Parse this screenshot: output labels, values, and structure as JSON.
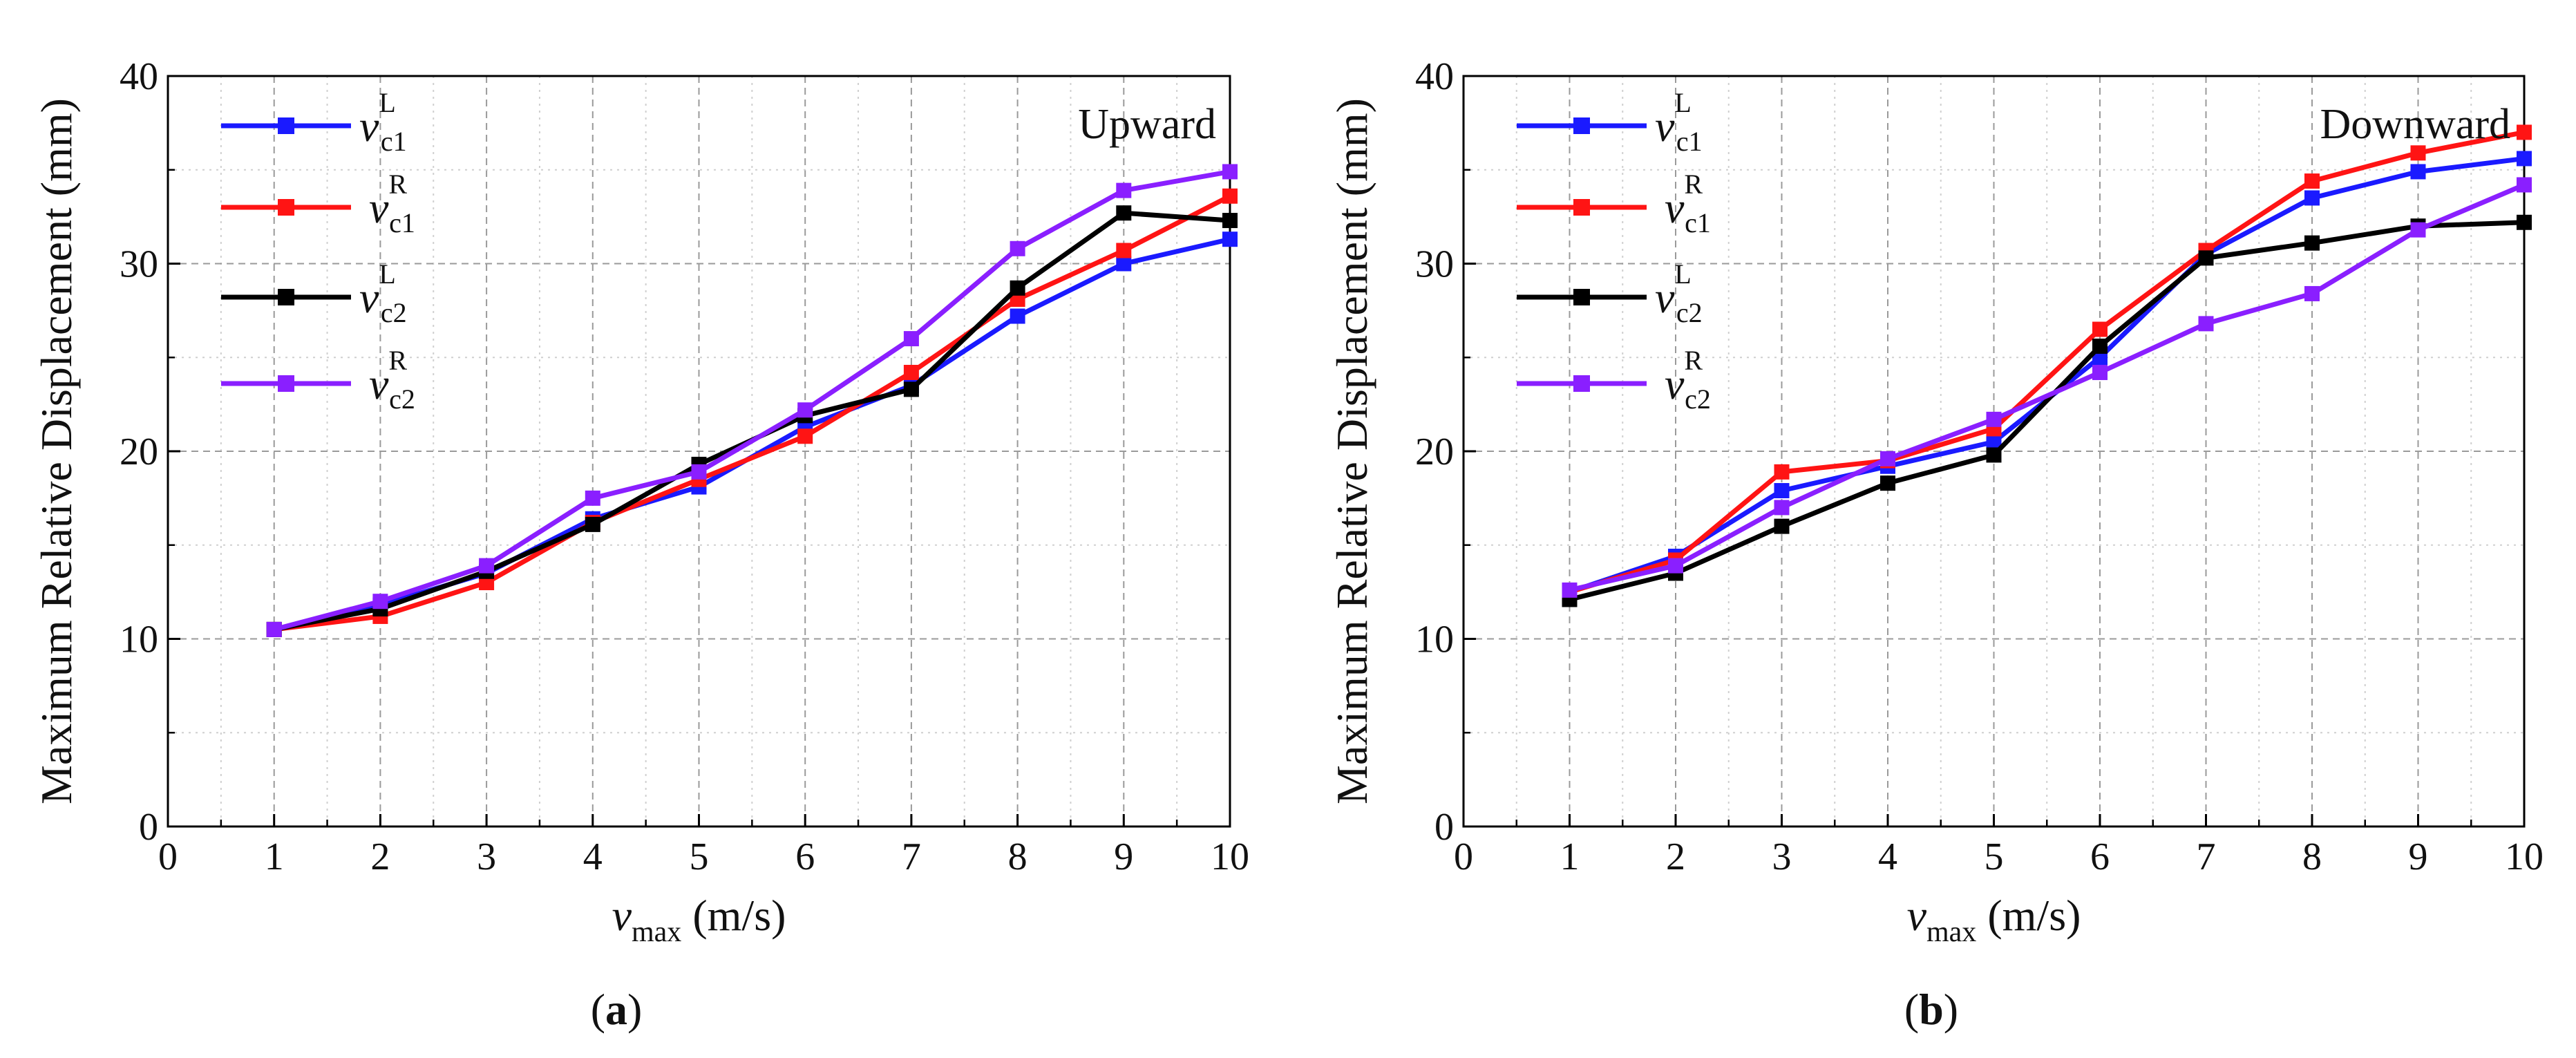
{
  "chart_data": [
    {
      "type": "line",
      "panel_label": "a",
      "annotation": "Upward",
      "xlabel_var": "v",
      "xlabel_sub": "max",
      "xlabel_unit": "(m/s)",
      "ylabel": "Maximum Relative Displacement (mm)",
      "xlim": [
        0,
        10
      ],
      "ylim": [
        0,
        40
      ],
      "x_ticks": [
        0,
        1,
        2,
        3,
        4,
        5,
        6,
        7,
        8,
        9,
        10
      ],
      "y_ticks": [
        0,
        10,
        20,
        30,
        40
      ],
      "grid": true,
      "legend_position": "top-left",
      "x": [
        1,
        2,
        3,
        4,
        5,
        6,
        7,
        8,
        9,
        10
      ],
      "series": [
        {
          "name": "v_c1^L",
          "sym": "v",
          "sub": "c1",
          "sup": "L",
          "color": "#1a1aff",
          "values": [
            10.5,
            11.8,
            13.5,
            16.4,
            18.1,
            21.3,
            23.5,
            27.2,
            30.0,
            31.3
          ]
        },
        {
          "name": "v_c1^R",
          "sym": "v",
          "sub": "c1",
          "sup": "R",
          "color": "#ff1414",
          "values": [
            10.5,
            11.2,
            13.0,
            16.2,
            18.5,
            20.8,
            24.2,
            28.1,
            30.7,
            33.6
          ]
        },
        {
          "name": "v_c2^L",
          "sym": "v",
          "sub": "c2",
          "sup": "L",
          "color": "#000000",
          "values": [
            10.5,
            11.6,
            13.6,
            16.1,
            19.3,
            21.9,
            23.3,
            28.7,
            32.7,
            32.3
          ]
        },
        {
          "name": "v_c2^R",
          "sym": "v",
          "sub": "c2",
          "sup": "R",
          "color": "#8a1fff",
          "values": [
            10.5,
            12.0,
            13.9,
            17.5,
            18.9,
            22.2,
            26.0,
            30.8,
            33.9,
            34.9
          ]
        }
      ]
    },
    {
      "type": "line",
      "panel_label": "b",
      "annotation": "Downward",
      "xlabel_var": "v",
      "xlabel_sub": "max",
      "xlabel_unit": "(m/s)",
      "ylabel": "Maximum Relative Displacement (mm)",
      "xlim": [
        0,
        10
      ],
      "ylim": [
        0,
        40
      ],
      "x_ticks": [
        0,
        1,
        2,
        3,
        4,
        5,
        6,
        7,
        8,
        9,
        10
      ],
      "y_ticks": [
        0,
        10,
        20,
        30,
        40
      ],
      "grid": true,
      "legend_position": "top-left",
      "x": [
        1,
        2,
        3,
        4,
        5,
        6,
        7,
        8,
        9,
        10
      ],
      "series": [
        {
          "name": "v_c1^L",
          "sym": "v",
          "sub": "c1",
          "sup": "L",
          "color": "#1a1aff",
          "values": [
            12.5,
            14.4,
            17.9,
            19.2,
            20.5,
            25.0,
            30.5,
            33.5,
            34.9,
            35.6
          ]
        },
        {
          "name": "v_c1^R",
          "sym": "v",
          "sub": "c1",
          "sup": "R",
          "color": "#ff1414",
          "values": [
            12.5,
            14.2,
            18.9,
            19.5,
            21.2,
            26.5,
            30.7,
            34.4,
            35.9,
            37.0
          ]
        },
        {
          "name": "v_c2^L",
          "sym": "v",
          "sub": "c2",
          "sup": "L",
          "color": "#000000",
          "values": [
            12.1,
            13.5,
            16.0,
            18.3,
            19.8,
            25.6,
            30.3,
            31.1,
            32.0,
            32.2
          ]
        },
        {
          "name": "v_c2^R",
          "sym": "v",
          "sub": "c2",
          "sup": "R",
          "color": "#8a1fff",
          "values": [
            12.6,
            13.9,
            17.0,
            19.6,
            21.7,
            24.2,
            26.8,
            28.4,
            31.8,
            34.2
          ]
        }
      ]
    }
  ]
}
